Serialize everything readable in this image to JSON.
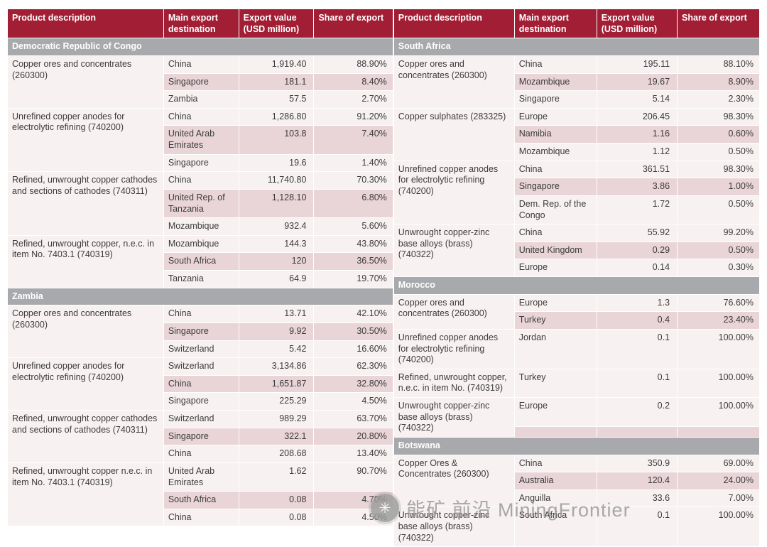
{
  "columns": [
    "Product description",
    "Main export destination",
    "Export value (USD million)",
    "Share of export"
  ],
  "tables": [
    {
      "id": "left",
      "sections": [
        {
          "country": "Democratic Republic of Congo",
          "groups": [
            {
              "product": "Copper ores and concentrates (260300)",
              "rows": [
                {
                  "destination": "China",
                  "value": "1,919.40",
                  "share": "88.90%"
                },
                {
                  "destination": "Singapore",
                  "value": "181.1",
                  "share": "8.40%"
                },
                {
                  "destination": "Zambia",
                  "value": "57.5",
                  "share": "2.70%"
                }
              ]
            },
            {
              "product": "Unrefined copper anodes for electrolytic refining (740200)",
              "rows": [
                {
                  "destination": "China",
                  "value": "1,286.80",
                  "share": "91.20%"
                },
                {
                  "destination": "United Arab Emirates",
                  "value": "103.8",
                  "share": "7.40%"
                },
                {
                  "destination": "Singapore",
                  "value": "19.6",
                  "share": "1.40%"
                }
              ]
            },
            {
              "product": "Refined, unwrought copper cathodes and sections of cathodes (740311)",
              "rows": [
                {
                  "destination": "China",
                  "value": "11,740.80",
                  "share": "70.30%"
                },
                {
                  "destination": "United Rep. of Tanzania",
                  "value": "1,128.10",
                  "share": "6.80%"
                },
                {
                  "destination": "Mozambique",
                  "value": "932.4",
                  "share": "5.60%"
                }
              ]
            },
            {
              "product": "Refined, unwrought copper, n.e.c. in item No. 7403.1 (740319)",
              "rows": [
                {
                  "destination": "Mozambique",
                  "value": "144.3",
                  "share": "43.80%"
                },
                {
                  "destination": "South Africa",
                  "value": "120",
                  "share": "36.50%"
                },
                {
                  "destination": "Tanzania",
                  "value": "64.9",
                  "share": "19.70%"
                }
              ]
            }
          ]
        },
        {
          "country": "Zambia",
          "groups": [
            {
              "product": "Copper ores and concentrates (260300)",
              "rows": [
                {
                  "destination": "China",
                  "value": "13.71",
                  "share": "42.10%"
                },
                {
                  "destination": "Singapore",
                  "value": "9.92",
                  "share": "30.50%"
                },
                {
                  "destination": "Switzerland",
                  "value": "5.42",
                  "share": "16.60%"
                }
              ]
            },
            {
              "product": "Unrefined copper anodes for electrolytic refining (740200)",
              "rows": [
                {
                  "destination": "Switzerland",
                  "value": "3,134.86",
                  "share": "62.30%"
                },
                {
                  "destination": "China",
                  "value": "1,651.87",
                  "share": "32.80%"
                },
                {
                  "destination": "Singapore",
                  "value": "225.29",
                  "share": "4.50%"
                }
              ]
            },
            {
              "product": "Refined, unwrought copper cathodes and sections of cathodes (740311)",
              "rows": [
                {
                  "destination": "Switzerland",
                  "value": "989.29",
                  "share": "63.70%"
                },
                {
                  "destination": "Singapore",
                  "value": "322.1",
                  "share": "20.80%"
                },
                {
                  "destination": "China",
                  "value": "208.68",
                  "share": "13.40%"
                }
              ]
            },
            {
              "product": "Refined, unwrought copper n.e.c. in item No. 7403.1 (740319)",
              "rows": [
                {
                  "destination": "United Arab Emirates",
                  "value": "1.62",
                  "share": "90.70%"
                },
                {
                  "destination": "South Africa",
                  "value": "0.08",
                  "share": "4.70%"
                },
                {
                  "destination": "China",
                  "value": "0.08",
                  "share": "4.50%"
                }
              ]
            }
          ]
        }
      ]
    },
    {
      "id": "right",
      "sections": [
        {
          "country": "South Africa",
          "groups": [
            {
              "product": "Copper ores and concentrates (260300)",
              "rows": [
                {
                  "destination": "China",
                  "value": "195.11",
                  "share": "88.10%"
                },
                {
                  "destination": "Mozambique",
                  "value": "19.67",
                  "share": "8.90%"
                },
                {
                  "destination": "Singapore",
                  "value": "5.14",
                  "share": "2.30%"
                }
              ]
            },
            {
              "product": "Copper sulphates (283325)",
              "rows": [
                {
                  "destination": "Europe",
                  "value": "206.45",
                  "share": "98.30%"
                },
                {
                  "destination": "Namibia",
                  "value": "1.16",
                  "share": "0.60%"
                },
                {
                  "destination": "Mozambique",
                  "value": "1.12",
                  "share": "0.50%"
                }
              ]
            },
            {
              "product": "Unrefined copper anodes for electrolytic refining (740200)",
              "rows": [
                {
                  "destination": "China",
                  "value": "361.51",
                  "share": "98.30%"
                },
                {
                  "destination": "Singapore",
                  "value": "3.86",
                  "share": "1.00%"
                },
                {
                  "destination": "Dem. Rep. of the Congo",
                  "value": "1.72",
                  "share": "0.50%"
                }
              ]
            },
            {
              "product": "Unwrought copper-zinc base alloys (brass) (740322)",
              "rows": [
                {
                  "destination": "China",
                  "value": "55.92",
                  "share": "99.20%"
                },
                {
                  "destination": "United Kingdom",
                  "value": "0.29",
                  "share": "0.50%"
                },
                {
                  "destination": "Europe",
                  "value": "0.14",
                  "share": "0.30%"
                }
              ]
            }
          ]
        },
        {
          "country": "Morocco",
          "groups": [
            {
              "product": "Copper ores and concentrates (260300)",
              "rows": [
                {
                  "destination": "Europe",
                  "value": "1.3",
                  "share": "76.60%"
                },
                {
                  "destination": "Turkey",
                  "value": "0.4",
                  "share": "23.40%"
                }
              ]
            },
            {
              "product": "Unrefined copper anodes for electrolytic refining (740200)",
              "rows": [
                {
                  "destination": "Jordan",
                  "value": "0.1",
                  "share": "100.00%"
                }
              ]
            },
            {
              "product": "Refined, unwrought copper, n.e.c. in item No. (740319)",
              "rows": [
                {
                  "destination": "Turkey",
                  "value": "0.1",
                  "share": "100.00%"
                }
              ]
            },
            {
              "product": "Unwrought copper-zinc base alloys (brass) (740322)",
              "rows": [
                {
                  "destination": "Europe",
                  "value": "0.2",
                  "share": "100.00%"
                },
                {
                  "destination": "",
                  "value": "",
                  "share": ""
                }
              ]
            }
          ]
        },
        {
          "country": "Botswana",
          "groups": [
            {
              "product": "Copper Ores & Concentrates (260300)",
              "rows": [
                {
                  "destination": "China",
                  "value": "350.9",
                  "share": "69.00%"
                },
                {
                  "destination": "Australia",
                  "value": "120.4",
                  "share": "24.00%"
                },
                {
                  "destination": "Anguilla",
                  "value": "33.6",
                  "share": "7.00%"
                }
              ]
            },
            {
              "product": "Unwrought copper-zinc base alloys (brass) (740322)",
              "rows": [
                {
                  "destination": "South Africa",
                  "value": "0.1",
                  "share": "100.00%"
                }
              ]
            }
          ]
        }
      ]
    }
  ],
  "watermark": {
    "logo_icon": "flower-icon",
    "logo_glyph": "✳",
    "text": "能矿 前沿 MiningFrontier"
  },
  "colors": {
    "header_bg": "#A21E35",
    "header_text": "#FFFFFF",
    "section_bg": "#A7A9AC",
    "row_light": "#F8F1F1",
    "row_dark": "#E9D4D7",
    "body_text": "#3C3C3C"
  }
}
